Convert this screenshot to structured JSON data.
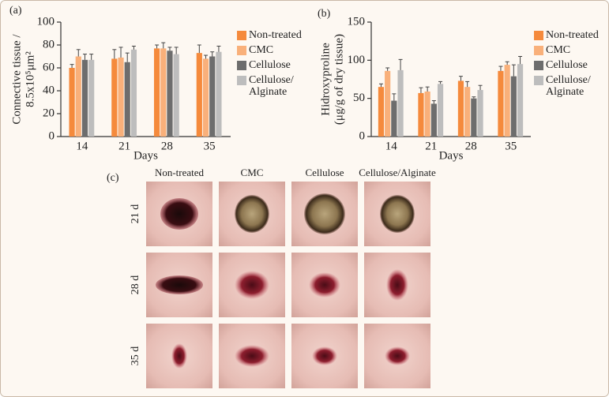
{
  "chart_data": [
    {
      "type": "bar",
      "panel": "(a)",
      "y_label": [
        "Connective tissue /",
        "8.5x10⁵μm²"
      ],
      "x_label": "Days",
      "categories": [
        "14",
        "21",
        "28",
        "35"
      ],
      "ylim": [
        0,
        100
      ],
      "yticks": [
        0,
        20,
        40,
        60,
        80,
        100
      ],
      "series": [
        {
          "name": "Non-treated",
          "color": "#f58a3c",
          "values": [
            60,
            68,
            77,
            73
          ],
          "errors": [
            3,
            8,
            3,
            7
          ]
        },
        {
          "name": "CMC",
          "color": "#f9b07a",
          "values": [
            70,
            69,
            77,
            68
          ],
          "errors": [
            6,
            9,
            5,
            3
          ]
        },
        {
          "name": "Cellulose",
          "color": "#6d6d6d",
          "values": [
            67,
            65,
            75,
            70
          ],
          "errors": [
            5,
            8,
            3,
            4
          ]
        },
        {
          "name": "Cellulose/ Alginate",
          "color": "#bdbdbd",
          "values": [
            67,
            76,
            72,
            74
          ],
          "errors": [
            5,
            3,
            6,
            5
          ]
        }
      ]
    },
    {
      "type": "bar",
      "panel": "(b)",
      "y_label": [
        "Hidroxyproline",
        "(μg/g of dry tissue)"
      ],
      "x_label": "Days",
      "categories": [
        "14",
        "21",
        "28",
        "35"
      ],
      "ylim": [
        0,
        150
      ],
      "yticks": [
        0,
        50,
        100,
        150
      ],
      "series": [
        {
          "name": "Non-treated",
          "color": "#f58a3c",
          "values": [
            65,
            57,
            73,
            86
          ],
          "errors": [
            4,
            7,
            6,
            6
          ]
        },
        {
          "name": "CMC",
          "color": "#f9b07a",
          "values": [
            86,
            59,
            65,
            94
          ],
          "errors": [
            4,
            6,
            7,
            4
          ]
        },
        {
          "name": "Cellulose",
          "color": "#6d6d6d",
          "values": [
            47,
            43,
            50,
            79
          ],
          "errors": [
            9,
            4,
            2,
            15
          ]
        },
        {
          "name": "Cellulose/ Alginate",
          "color": "#bdbdbd",
          "values": [
            87,
            69,
            61,
            95
          ],
          "errors": [
            14,
            3,
            6,
            10
          ]
        }
      ]
    }
  ],
  "panel_c": {
    "label": "(c)",
    "columns": [
      "Non-treated",
      "CMC",
      "Cellulose",
      "Cellulose/Alginate"
    ],
    "rows": [
      "21 d",
      "28 d",
      "35 d"
    ]
  }
}
